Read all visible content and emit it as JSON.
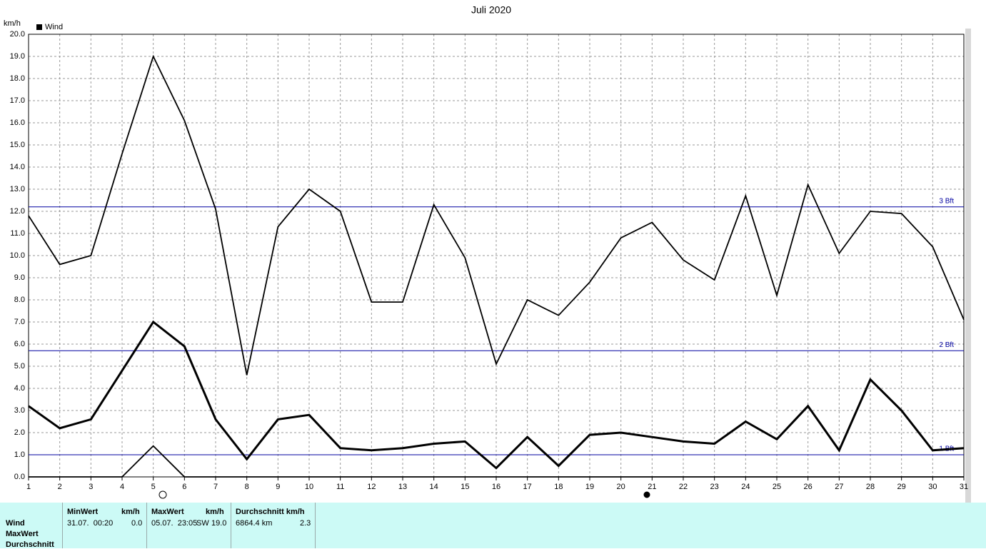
{
  "chart_data": {
    "type": "line",
    "title": "Juli 2020",
    "y_label": "km/h",
    "legend": "Wind",
    "x": [
      1,
      2,
      3,
      4,
      5,
      6,
      7,
      8,
      9,
      10,
      11,
      12,
      13,
      14,
      15,
      16,
      17,
      18,
      19,
      20,
      21,
      22,
      23,
      24,
      25,
      26,
      27,
      28,
      29,
      30,
      31
    ],
    "xlim": [
      1,
      31
    ],
    "xticks": [
      1,
      2,
      3,
      4,
      5,
      6,
      7,
      8,
      9,
      10,
      11,
      12,
      13,
      14,
      15,
      16,
      17,
      18,
      19,
      20,
      21,
      22,
      23,
      24,
      25,
      26,
      27,
      28,
      29,
      30,
      31
    ],
    "ylim": [
      0,
      20
    ],
    "yticks": [
      {
        "value": 0,
        "label": "0.0"
      },
      {
        "value": 1,
        "label": "1.0"
      },
      {
        "value": 2,
        "label": "2.0"
      },
      {
        "value": 3,
        "label": "3.0"
      },
      {
        "value": 4,
        "label": "4.0"
      },
      {
        "value": 5,
        "label": "5.0"
      },
      {
        "value": 6,
        "label": "6.0"
      },
      {
        "value": 7,
        "label": "7.0"
      },
      {
        "value": 8,
        "label": "8.0"
      },
      {
        "value": 9,
        "label": "9.0"
      },
      {
        "value": 10,
        "label": "10.0"
      },
      {
        "value": 11,
        "label": "11.0"
      },
      {
        "value": 12,
        "label": "12.0"
      },
      {
        "value": 13,
        "label": "13.0"
      },
      {
        "value": 14,
        "label": "14.0"
      },
      {
        "value": 15,
        "label": "15.0"
      },
      {
        "value": 16,
        "label": "16.0"
      },
      {
        "value": 17,
        "label": "17.0"
      },
      {
        "value": 18,
        "label": "18.0"
      },
      {
        "value": 19,
        "label": "19.0"
      },
      {
        "value": 20,
        "label": "20.0"
      }
    ],
    "grid": true,
    "series": [
      {
        "color": "#000000",
        "values": [
          11.8,
          9.6,
          10.0,
          14.6,
          19.0,
          16.1,
          12.1,
          4.6,
          11.3,
          13.0,
          12.0,
          7.9,
          7.9,
          12.3,
          9.9,
          5.1,
          8.0,
          7.3,
          8.8,
          10.8,
          11.5,
          9.8,
          8.9,
          12.7,
          8.2,
          13.2,
          10.1,
          12.0,
          11.9,
          10.4,
          7.1
        ]
      },
      {
        "color": "#000000",
        "values": [
          3.2,
          2.2,
          2.6,
          4.8,
          7.0,
          5.9,
          2.6,
          0.8,
          2.6,
          2.8,
          1.3,
          1.2,
          1.3,
          1.5,
          1.6,
          0.4,
          1.8,
          0.5,
          1.9,
          2.0,
          1.8,
          1.6,
          1.5,
          2.5,
          1.7,
          3.2,
          1.2,
          4.4,
          3.0,
          1.2,
          1.3
        ]
      },
      {
        "color": "#000000",
        "values": [
          0,
          0,
          0,
          0,
          1.4,
          0,
          0,
          0,
          0,
          0,
          0,
          0,
          0,
          0,
          0,
          0,
          0,
          0,
          0,
          0,
          0,
          0,
          0,
          0,
          0,
          0,
          0,
          0,
          0,
          0,
          0
        ]
      }
    ],
    "reference_lines": [
      {
        "value": 12.2,
        "label": "3 Bft"
      },
      {
        "value": 5.7,
        "label": "2 Bft"
      },
      {
        "value": 1.0,
        "label": "1 Bft"
      }
    ],
    "reference_color": "#0000a0"
  },
  "stats": {
    "row_labels": [
      "Wind",
      "MaxWert",
      "Durchschnitt"
    ],
    "min": {
      "header": "MinWert",
      "unit": "km/h",
      "time": "31.07.  00:20",
      "value": "0.0"
    },
    "max": {
      "header": "MaxWert",
      "unit": "km/h",
      "time": "05.07.  23:05",
      "dir": "SW",
      "value": "19.0"
    },
    "avg": {
      "header": "Durchschnitt km/h",
      "distance": "6864.4 km",
      "value": "2.3"
    }
  }
}
